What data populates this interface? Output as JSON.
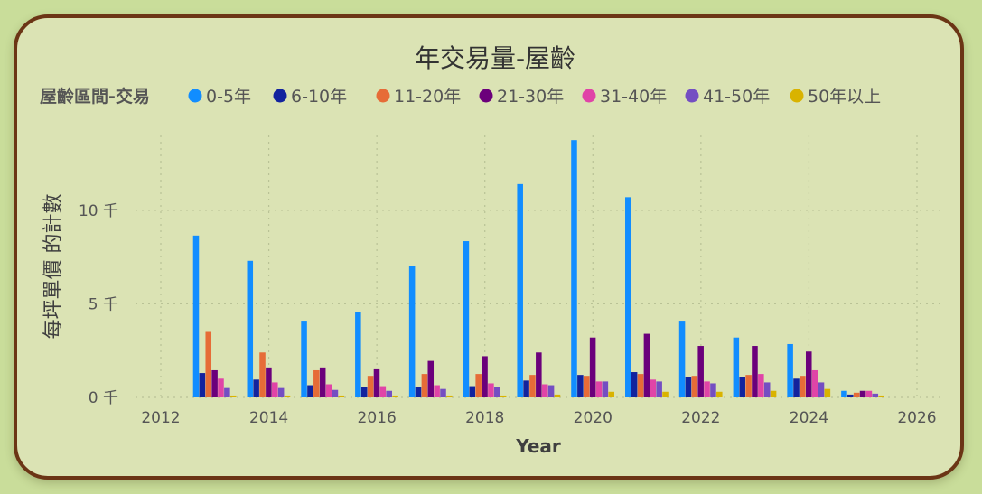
{
  "chart_data": {
    "type": "bar",
    "title": "年交易量-屋齡",
    "legend_title": "屋齡區間-交易",
    "xlabel": "Year",
    "ylabel": "每坪單價 的計數",
    "x_ticks": [
      "2012",
      "2014",
      "2016",
      "2018",
      "2020",
      "2022",
      "2024",
      "2026"
    ],
    "y_ticks": [
      {
        "value": 0,
        "label": "0 千"
      },
      {
        "value": 5000,
        "label": "5 千"
      },
      {
        "value": 10000,
        "label": "10 千"
      }
    ],
    "xlim": [
      2012,
      2026
    ],
    "ylim": [
      0,
      14000
    ],
    "grid": true,
    "legend_position": "top-left",
    "categories": [
      "2013",
      "2014",
      "2015",
      "2016",
      "2017",
      "2018",
      "2019",
      "2020",
      "2021",
      "2022",
      "2023",
      "2024",
      "2025"
    ],
    "series": [
      {
        "name": "0-5年",
        "color": "#118dff",
        "values": [
          8650,
          7300,
          4100,
          4550,
          7000,
          8350,
          11400,
          13750,
          10700,
          4100,
          3200,
          2850,
          350
        ]
      },
      {
        "name": "6-10年",
        "color": "#12239e",
        "values": [
          1300,
          950,
          650,
          550,
          550,
          600,
          900,
          1200,
          1350,
          1100,
          1100,
          1000,
          150
        ]
      },
      {
        "name": "11-20年",
        "color": "#e66c37",
        "values": [
          3500,
          2400,
          1450,
          1150,
          1250,
          1250,
          1200,
          1150,
          1250,
          1150,
          1200,
          1150,
          250
        ]
      },
      {
        "name": "21-30年",
        "color": "#6b007b",
        "values": [
          1450,
          1600,
          1600,
          1500,
          1950,
          2200,
          2400,
          3200,
          3400,
          2750,
          2750,
          2450,
          350
        ]
      },
      {
        "name": "31-40年",
        "color": "#e044a7",
        "values": [
          1000,
          800,
          700,
          600,
          650,
          750,
          700,
          850,
          950,
          850,
          1250,
          1450,
          350
        ]
      },
      {
        "name": "41-50年",
        "color": "#744ec2",
        "values": [
          500,
          500,
          400,
          350,
          450,
          550,
          650,
          850,
          850,
          750,
          800,
          800,
          200
        ]
      },
      {
        "name": "50年以上",
        "color": "#d9b300",
        "values": [
          100,
          100,
          100,
          100,
          100,
          100,
          150,
          300,
          300,
          300,
          350,
          450,
          100
        ]
      }
    ]
  }
}
